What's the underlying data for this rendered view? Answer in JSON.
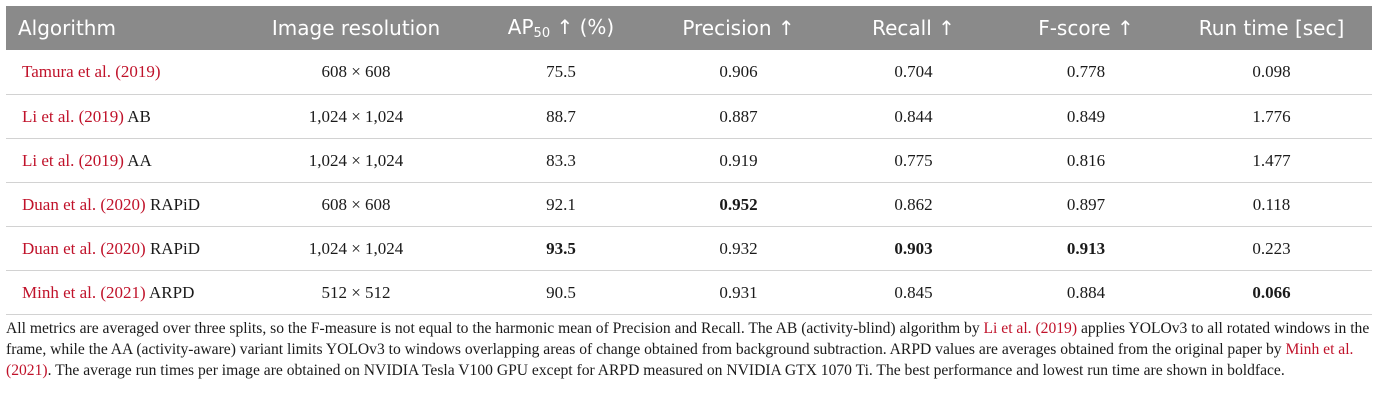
{
  "table": {
    "headers": {
      "algorithm": "Algorithm",
      "resolution": "Image resolution",
      "ap_main": "AP",
      "ap_sub": "50",
      "ap_rest": " ↑ (%)",
      "precision": "Precision ↑",
      "recall": "Recall ↑",
      "fscore": "F-score ↑",
      "runtime": "Run time [sec]"
    },
    "rows": [
      {
        "cite": "Tamura et al. (2019)",
        "suffix": "",
        "resolution": "608 × 608",
        "ap": "75.5",
        "precision": "0.906",
        "recall": "0.704",
        "fscore": "0.778",
        "runtime": "0.098"
      },
      {
        "cite": "Li et al. (2019)",
        "suffix": " AB",
        "resolution": "1,024 × 1,024",
        "ap": "88.7",
        "precision": "0.887",
        "recall": "0.844",
        "fscore": "0.849",
        "runtime": "1.776"
      },
      {
        "cite": "Li et al. (2019)",
        "suffix": " AA",
        "resolution": "1,024 × 1,024",
        "ap": "83.3",
        "precision": "0.919",
        "recall": "0.775",
        "fscore": "0.816",
        "runtime": "1.477"
      },
      {
        "cite": "Duan et al. (2020)",
        "suffix": " RAPiD",
        "resolution": "608 × 608",
        "ap": "92.1",
        "precision": "0.952",
        "recall": "0.862",
        "fscore": "0.897",
        "runtime": "0.118"
      },
      {
        "cite": "Duan et al. (2020)",
        "suffix": " RAPiD",
        "resolution": "1,024 × 1,024",
        "ap": "93.5",
        "precision": "0.932",
        "recall": "0.903",
        "fscore": "0.913",
        "runtime": "0.223"
      },
      {
        "cite": "Minh et al. (2021)",
        "suffix": " ARPD",
        "resolution": "512 × 512",
        "ap": "90.5",
        "precision": "0.931",
        "recall": "0.845",
        "fscore": "0.884",
        "runtime": "0.066"
      }
    ]
  },
  "footnote": {
    "part1": "All metrics are averaged over three splits, so the F-measure is not equal to the harmonic mean of Precision and Recall. The AB (activity-blind) algorithm by ",
    "cite1": "Li et al. (2019)",
    "part2": " applies YOLOv3 to all rotated windows in the frame, while the AA (activity-aware) variant limits YOLOv3 to windows overlapping areas of change obtained from background subtraction. ARPD values are averages obtained from the original paper by ",
    "cite2": "Minh et al. (2021)",
    "part3": ". The average run times per image are obtained on NVIDIA Tesla V100 GPU except for ARPD measured on NVIDIA GTX 1070 Ti. The best performance and lowest run time are shown in boldface."
  },
  "colors": {
    "header_bg": "#8a8a8a",
    "header_text": "#ffffff",
    "citation": "#c0122a",
    "row_divider": "#d2d2d2"
  }
}
